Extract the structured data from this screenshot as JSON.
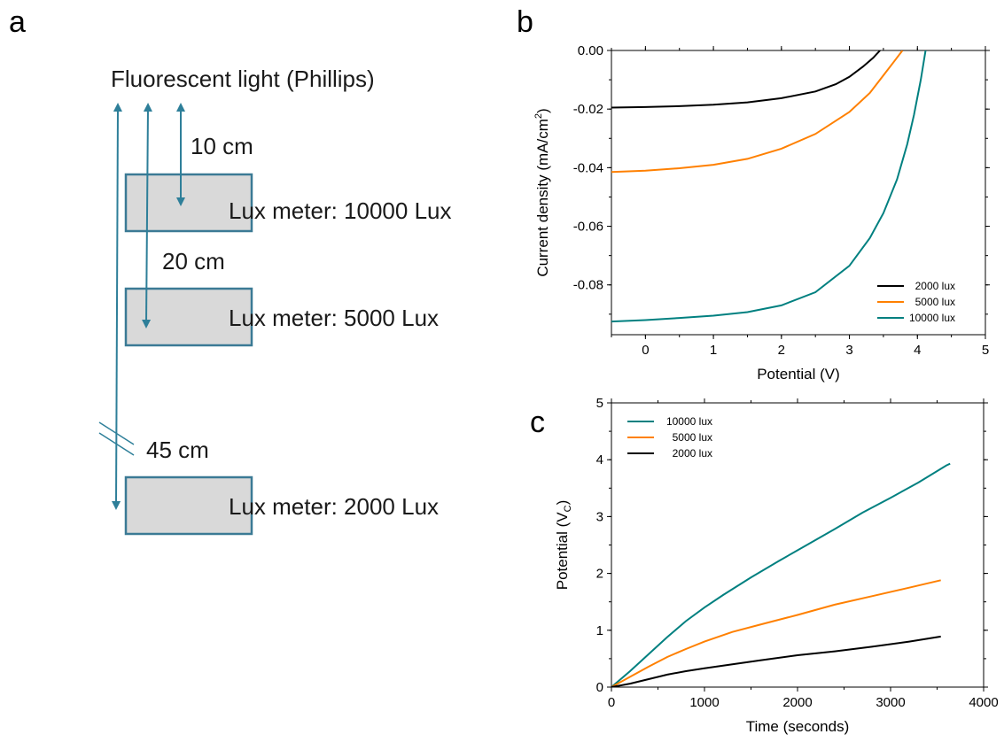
{
  "panels": {
    "a": "a",
    "b": "b",
    "c": "c"
  },
  "diagram": {
    "light_source": "Fluorescent light (Phillips)",
    "distances": [
      "10 cm",
      "20 cm",
      "45 cm"
    ],
    "boxes": [
      "Lux meter: 10000 Lux",
      "Lux meter: 5000 Lux",
      "Lux meter: 2000 Lux"
    ],
    "colors": {
      "arrow": "#2e7f99",
      "box_fill": "#d9d9d9",
      "box_stroke": "#3b7a95"
    }
  },
  "chart_data": [
    {
      "id": "b",
      "type": "line",
      "xlabel": "Potential (V)",
      "ylabel_main": "Current density (mA/cm",
      "ylabel_sup": "2",
      "ylabel_tail": ")",
      "xlim": [
        -0.5,
        5
      ],
      "ylim": [
        -0.097,
        0
      ],
      "xticks": [
        "0",
        "1",
        "2",
        "3",
        "4",
        "5"
      ],
      "yticks": [
        "0.00",
        "-0.02",
        "-0.04",
        "-0.06",
        "-0.08"
      ],
      "legend_position": "bottom-right",
      "series": [
        {
          "name": "2000 lux",
          "color": "#000000",
          "x": [
            -0.5,
            0,
            0.5,
            1,
            1.5,
            2,
            2.5,
            2.8,
            3.0,
            3.2,
            3.35,
            3.45
          ],
          "y": [
            -0.0195,
            -0.0193,
            -0.019,
            -0.0185,
            -0.0177,
            -0.0163,
            -0.014,
            -0.0115,
            -0.009,
            -0.0055,
            -0.0025,
            0
          ]
        },
        {
          "name": "5000 lux",
          "color": "#ff8000",
          "x": [
            -0.5,
            0,
            0.5,
            1,
            1.5,
            2,
            2.5,
            3.0,
            3.3,
            3.5,
            3.65,
            3.78
          ],
          "y": [
            -0.0415,
            -0.041,
            -0.0402,
            -0.039,
            -0.037,
            -0.0335,
            -0.0285,
            -0.021,
            -0.0145,
            -0.0085,
            -0.004,
            0
          ]
        },
        {
          "name": "10000 lux",
          "color": "#008080",
          "x": [
            -0.5,
            0,
            0.5,
            1,
            1.5,
            2,
            2.5,
            3.0,
            3.3,
            3.5,
            3.7,
            3.85,
            3.95,
            4.05,
            4.12
          ],
          "y": [
            -0.0925,
            -0.092,
            -0.0913,
            -0.0905,
            -0.0893,
            -0.087,
            -0.0825,
            -0.0735,
            -0.064,
            -0.0555,
            -0.044,
            -0.032,
            -0.022,
            -0.01,
            0
          ]
        }
      ]
    },
    {
      "id": "c",
      "type": "line",
      "xlabel": "Time (seconds)",
      "ylabel_main": "Potential (V",
      "ylabel_sub": "C",
      "ylabel_tail": ")",
      "xlim": [
        0,
        4000
      ],
      "ylim": [
        0,
        5
      ],
      "xticks": [
        "0",
        "1000",
        "2000",
        "3000",
        "4000"
      ],
      "yticks": [
        "0",
        "1",
        "2",
        "3",
        "4",
        "5"
      ],
      "legend_position": "top-left",
      "series": [
        {
          "name": "10000 lux",
          "color": "#008080",
          "x": [
            0,
            200,
            400,
            600,
            800,
            1000,
            1200,
            1500,
            1800,
            2100,
            2400,
            2700,
            3000,
            3300,
            3600,
            3640
          ],
          "y": [
            0,
            0.28,
            0.58,
            0.88,
            1.16,
            1.4,
            1.62,
            1.93,
            2.22,
            2.5,
            2.78,
            3.07,
            3.33,
            3.6,
            3.9,
            3.93
          ]
        },
        {
          "name": "5000 lux",
          "color": "#ff8000",
          "x": [
            0,
            200,
            400,
            600,
            800,
            1000,
            1300,
            1600,
            2000,
            2400,
            2800,
            3200,
            3540
          ],
          "y": [
            0,
            0.18,
            0.36,
            0.53,
            0.67,
            0.8,
            0.97,
            1.1,
            1.27,
            1.45,
            1.6,
            1.75,
            1.88
          ]
        },
        {
          "name": "2000 lux",
          "color": "#000000",
          "x": [
            0,
            200,
            400,
            600,
            800,
            1000,
            1300,
            1600,
            2000,
            2400,
            2800,
            3200,
            3540
          ],
          "y": [
            0,
            0.06,
            0.14,
            0.22,
            0.28,
            0.33,
            0.4,
            0.47,
            0.56,
            0.63,
            0.71,
            0.8,
            0.89
          ]
        }
      ]
    }
  ]
}
